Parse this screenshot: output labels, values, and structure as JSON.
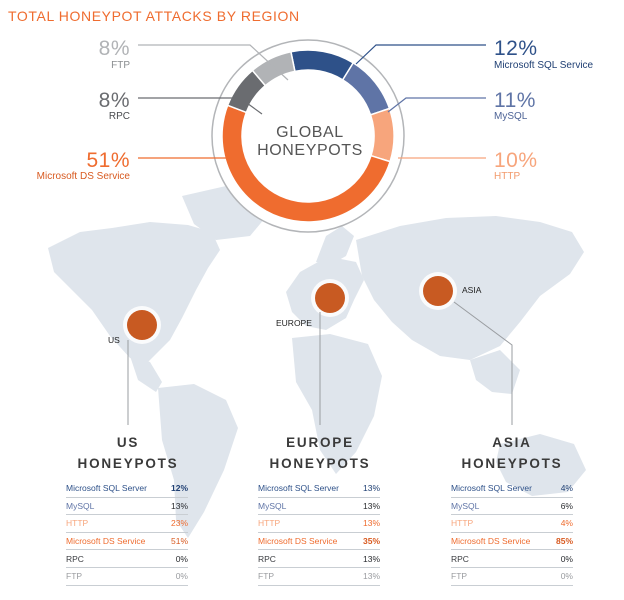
{
  "title": "TOTAL HONEYPOT ATTACKS BY REGION",
  "donut_center": {
    "line1": "GLOBAL",
    "line2": "HONEYPOTS"
  },
  "colors": {
    "Microsoft SQL Server": "#2e5189",
    "MySQL": "#5f74a6",
    "HTTP": "#f7a57c",
    "Microsoft DS Service": "#ef6c2f",
    "RPC": "#6a6c70",
    "FTP": "#b1b3b6"
  },
  "chart_data": [
    {
      "type": "pie",
      "title": "TOTAL HONEYPOT ATTACKS BY REGION",
      "center_label": "GLOBAL HONEYPOTS",
      "slices": [
        {
          "label": "Microsoft SQL Service",
          "value": 12,
          "value_text": "12%",
          "color": "#2e5189"
        },
        {
          "label": "MySQL",
          "value": 11,
          "value_text": "11%",
          "color": "#5f74a6"
        },
        {
          "label": "HTTP",
          "value": 10,
          "value_text": "10%",
          "color": "#f7a57c"
        },
        {
          "label": "Microsoft DS Service",
          "value": 51,
          "value_text": "51%",
          "color": "#ef6c2f"
        },
        {
          "label": "RPC",
          "value": 8,
          "value_text": "8%",
          "color": "#6a6c70"
        },
        {
          "label": "FTP",
          "value": 8,
          "value_text": "8%",
          "color": "#b1b3b6"
        }
      ]
    },
    {
      "type": "table",
      "title": "US HONEYPOTS",
      "rows": [
        {
          "label": "Microsoft SQL Server",
          "value": "12%"
        },
        {
          "label": "MySQL",
          "value": "13%"
        },
        {
          "label": "HTTP",
          "value": "23%"
        },
        {
          "label": "Microsoft DS Service",
          "value": "51%"
        },
        {
          "label": "RPC",
          "value": "0%"
        },
        {
          "label": "FTP",
          "value": "0%"
        }
      ]
    },
    {
      "type": "table",
      "title": "EUROPE HONEYPOTS",
      "rows": [
        {
          "label": "Microsoft SQL Server",
          "value": "13%"
        },
        {
          "label": "MySQL",
          "value": "13%"
        },
        {
          "label": "HTTP",
          "value": "13%"
        },
        {
          "label": "Microsoft DS Service",
          "value": "35%"
        },
        {
          "label": "RPC",
          "value": "13%"
        },
        {
          "label": "FTP",
          "value": "13%"
        }
      ]
    },
    {
      "type": "table",
      "title": "ASIA HONEYPOTS",
      "rows": [
        {
          "label": "Microsoft SQL Server",
          "value": "4%"
        },
        {
          "label": "MySQL",
          "value": "6%"
        },
        {
          "label": "HTTP",
          "value": "4%"
        },
        {
          "label": "Microsoft DS Service",
          "value": "85%"
        },
        {
          "label": "RPC",
          "value": "0%"
        },
        {
          "label": "FTP",
          "value": "0%"
        }
      ]
    }
  ],
  "regions": [
    {
      "map_label": "US",
      "heading_line1": "US",
      "heading_line2": "HONEYPOTS"
    },
    {
      "map_label": "EUROPE",
      "heading_line1": "EUROPE",
      "heading_line2": "HONEYPOTS"
    },
    {
      "map_label": "ASIA",
      "heading_line1": "ASIA",
      "heading_line2": "HONEYPOTS"
    }
  ]
}
